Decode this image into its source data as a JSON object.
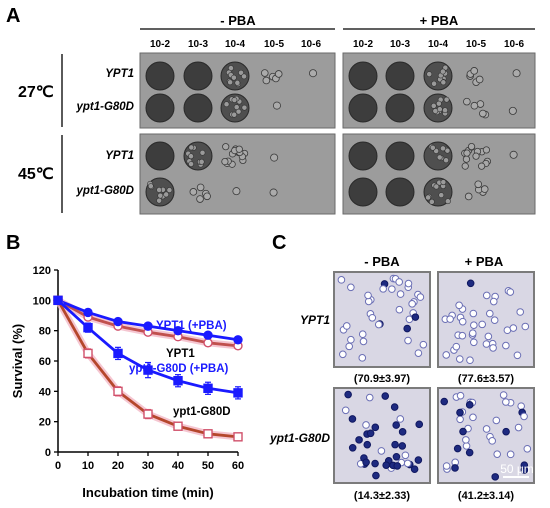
{
  "panel_labels": {
    "a": "A",
    "b": "B",
    "c": "C"
  },
  "panel_a": {
    "conditions": [
      "- PBA",
      "+ PBA"
    ],
    "dilutions": [
      "10-2",
      "10-3",
      "10-4",
      "10-5",
      "10-6"
    ],
    "temperatures": [
      "27℃",
      "45℃"
    ],
    "strains": [
      "YPT1",
      "ypt1-G80D"
    ],
    "growth_levels": [
      [
        [
          5,
          5,
          4,
          2,
          1
        ],
        [
          5,
          5,
          4,
          2,
          1
        ]
      ],
      [
        [
          5,
          5,
          4,
          1,
          0
        ],
        [
          5,
          5,
          4,
          2,
          1
        ]
      ],
      [
        [
          5,
          4,
          3,
          1,
          0
        ],
        [
          5,
          5,
          4,
          3,
          1
        ]
      ],
      [
        [
          4,
          2,
          1,
          1,
          0
        ],
        [
          5,
          5,
          4,
          2,
          0
        ]
      ]
    ],
    "colors": {
      "plate": "#9c9c9c",
      "plate_border": "#6a6a6a"
    }
  },
  "chart_data": {
    "type": "line",
    "xlabel": "Incubation time (min)",
    "ylabel": "Survival (%)",
    "xlim": [
      0,
      60
    ],
    "ylim": [
      0,
      120
    ],
    "x_ticks": [
      "0",
      "10",
      "20",
      "30",
      "40",
      "50",
      "60"
    ],
    "y_ticks": [
      "0",
      "20",
      "40",
      "60",
      "80",
      "100",
      "120"
    ],
    "x": [
      0,
      10,
      20,
      30,
      40,
      50,
      60
    ],
    "series": [
      {
        "name": "YPT1 (+PBA)",
        "values": [
          100,
          92,
          86,
          83,
          80,
          77,
          74
        ],
        "errors": [
          0,
          2,
          2,
          2,
          2,
          2,
          2
        ],
        "color": "#1a1aff",
        "marker": "filled-circle"
      },
      {
        "name": "YPT1",
        "values": [
          100,
          89,
          83,
          79,
          76,
          72,
          70
        ],
        "errors": [
          0,
          2,
          2,
          2,
          2,
          2,
          2
        ],
        "color": "#c0504d",
        "marker": "open-circle"
      },
      {
        "name": "ypt1-G80D (+PBA)",
        "values": [
          100,
          82,
          65,
          54,
          47,
          42,
          39
        ],
        "errors": [
          0,
          3,
          4,
          5,
          4,
          4,
          4
        ],
        "color": "#1a1aff",
        "marker": "filled-square"
      },
      {
        "name": "ypt1-G80D",
        "values": [
          100,
          65,
          40,
          25,
          17,
          12,
          10
        ],
        "errors": [
          0,
          3,
          3,
          3,
          2,
          2,
          2
        ],
        "color": "#b5472c",
        "marker": "open-square"
      }
    ],
    "label_colors": {
      "YPT1 (+PBA)": "#1a1aff",
      "YPT1": "#000000",
      "ypt1-G80D (+PBA)": "#1a1aff",
      "ypt1-G80D": "#000000"
    }
  },
  "panel_c": {
    "conditions": [
      "- PBA",
      "+ PBA"
    ],
    "strains": [
      "YPT1",
      "ypt1-G80D"
    ],
    "percentages": [
      [
        "(70.9±3.97)",
        "(77.6±3.57)"
      ],
      [
        "(14.3±2.33)",
        "(41.2±3.14)"
      ]
    ],
    "scale_bar": "50 μm",
    "colors": {
      "field": "#d9d7e4",
      "cell_clear": "#ffffff",
      "cell_stained": "#1e2a80"
    }
  }
}
